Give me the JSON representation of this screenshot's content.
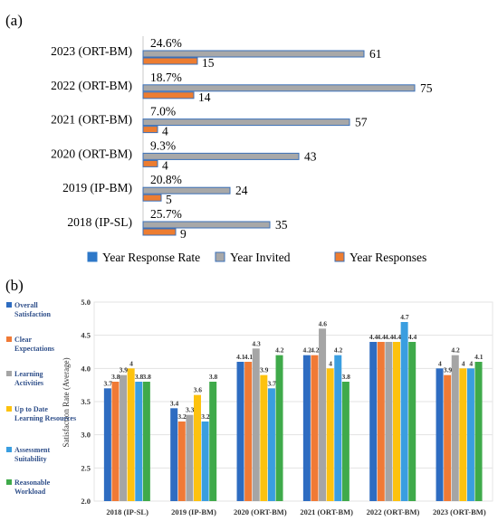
{
  "chart_data": [
    {
      "type": "bar",
      "panel_label": "(a)",
      "orientation": "horizontal",
      "categories": [
        "2023 (ORT-BM)",
        "2022 (ORT-BM)",
        "2021 (ORT-BM)",
        "2020 (ORT-BM)",
        "2019 (IP-BM)",
        "2018 (IP-SL)"
      ],
      "series": [
        {
          "name": "Year Response Rate",
          "values": [
            "24.6%",
            "18.7%",
            "7.0%",
            "9.3%",
            "20.8%",
            "25.7%"
          ],
          "color": "#2e78c8"
        },
        {
          "name": "Year Invited",
          "values": [
            61,
            75,
            57,
            43,
            24,
            35
          ],
          "color": "#a8a8a8"
        },
        {
          "name": "Year Responses",
          "values": [
            15,
            14,
            4,
            4,
            5,
            9
          ],
          "color": "#ed7d31"
        }
      ],
      "xlim": [
        0,
        75
      ],
      "legend_position": "bottom"
    },
    {
      "type": "bar",
      "panel_label": "(b)",
      "categories": [
        "2018 (IP-SL)",
        "2019 (IP-BM)",
        "2020 (ORT-BM)",
        "2021 (ORT-BM)",
        "2022 (ORT-BM)",
        "2023 (ORT-BM)"
      ],
      "series": [
        {
          "name": "Overall Satisfaction",
          "values": [
            3.7,
            3.4,
            4.1,
            4.2,
            4.4,
            4.0
          ],
          "color": "#2e6cc1"
        },
        {
          "name": "Clear Expectations",
          "values": [
            3.8,
            3.2,
            4.1,
            4.2,
            4.4,
            3.9
          ],
          "color": "#f07a36"
        },
        {
          "name": "Learning Activities",
          "values": [
            3.9,
            3.3,
            4.3,
            4.6,
            4.4,
            4.2
          ],
          "color": "#a5a5a5"
        },
        {
          "name": "Up to Date Learning Resources",
          "values": [
            4.0,
            3.6,
            3.9,
            4.0,
            4.4,
            4.0
          ],
          "color": "#fdc20e"
        },
        {
          "name": "Assessment Suitability",
          "values": [
            3.8,
            3.2,
            3.7,
            4.2,
            4.7,
            4.0
          ],
          "color": "#3a9ee0"
        },
        {
          "name": "Reasonable Workload",
          "values": [
            3.8,
            3.8,
            4.2,
            3.8,
            4.4,
            4.1
          ],
          "color": "#3faa4a"
        }
      ],
      "ylabel": "Satisfaction Rate (Average)",
      "ylim": [
        2.0,
        5.0
      ],
      "yticks": [
        "2.0",
        "2.5",
        "3.0",
        "3.5",
        "4.0",
        "4.5",
        "5.0"
      ],
      "legend_position": "left"
    }
  ]
}
